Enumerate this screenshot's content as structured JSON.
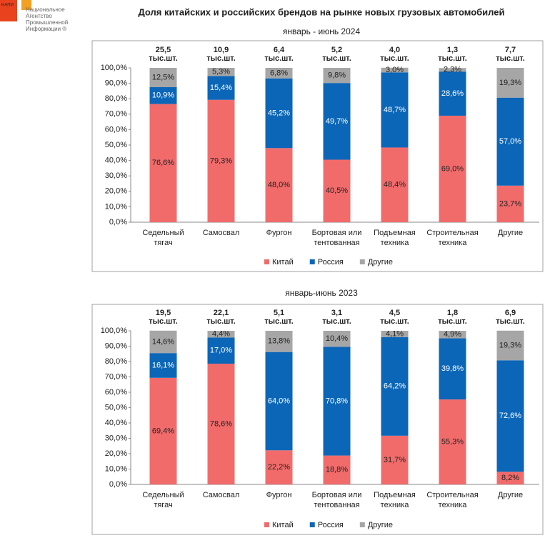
{
  "header": {
    "title": "Доля китайских и российских брендов на рынке новых грузовых автомобилей",
    "logo": {
      "mark": "НАПИ",
      "lines": [
        "Национальное",
        "Агентство",
        "Промышленной",
        "Информации ®"
      ]
    }
  },
  "chart_data": [
    {
      "type": "bar",
      "stacked": true,
      "title": "январь - июнь 2024",
      "categories": [
        "Седельный тягач",
        "Самосвал",
        "Фургон",
        "Бортовая или тентованная",
        "Подъемная техника",
        "Строительная техника",
        "Другие"
      ],
      "series": [
        {
          "name": "Китай",
          "color": "#f26b6b",
          "label_color": "#222222",
          "values": [
            76.6,
            79.3,
            48.0,
            40.5,
            48.4,
            69.0,
            23.7
          ],
          "value_labels": [
            "76,6%",
            "79,3%",
            "48,0%",
            "40,5%",
            "48,4%",
            "69,0%",
            "23,7%"
          ]
        },
        {
          "name": "Россия",
          "color": "#0b66b8",
          "label_color": "#ffffff",
          "values": [
            10.9,
            15.4,
            45.2,
            49.7,
            48.7,
            28.6,
            57.0
          ],
          "value_labels": [
            "10,9%",
            "15,4%",
            "45,2%",
            "49,7%",
            "48,7%",
            "28,6%",
            "57,0%"
          ]
        },
        {
          "name": "Другие",
          "color": "#a6a6a6",
          "label_color": "#222222",
          "values": [
            12.5,
            5.3,
            6.8,
            9.8,
            3.0,
            2.3,
            19.3
          ],
          "value_labels": [
            "12,5%",
            "5,3%",
            "6,8%",
            "9,8%",
            "3,0%",
            "2,3%",
            "19,3%"
          ]
        }
      ],
      "totals": {
        "values": [
          25.5,
          10.9,
          6.4,
          5.2,
          4.0,
          1.3,
          7.7
        ],
        "value_labels": [
          "25,5",
          "10,9",
          "6,4",
          "5,2",
          "4,0",
          "1,3",
          "7,7"
        ],
        "unit": "тыс.шт."
      },
      "ylim": [
        0,
        100
      ],
      "yticks": [
        {
          "value": 0,
          "label": "0,0%"
        },
        {
          "value": 10,
          "label": "10,0%"
        },
        {
          "value": 20,
          "label": "20,0%"
        },
        {
          "value": 30,
          "label": "30,0%"
        },
        {
          "value": 40,
          "label": "40,0%"
        },
        {
          "value": 50,
          "label": "50,0%"
        },
        {
          "value": 60,
          "label": "60,0%"
        },
        {
          "value": 70,
          "label": "70,0%"
        },
        {
          "value": 80,
          "label": "80,0%"
        },
        {
          "value": 90,
          "label": "90,0%"
        },
        {
          "value": 100,
          "label": "100,0%"
        }
      ],
      "grid": false,
      "legend": "bottom"
    },
    {
      "type": "bar",
      "stacked": true,
      "title": "январь-июнь 2023",
      "categories": [
        "Седельный тягач",
        "Самосвал",
        "Фургон",
        "Бортовая или тентованная",
        "Подъемная техника",
        "Строительная техника",
        "Другие"
      ],
      "series": [
        {
          "name": "Китай",
          "color": "#f26b6b",
          "label_color": "#222222",
          "values": [
            69.4,
            78.6,
            22.2,
            18.8,
            31.7,
            55.3,
            8.2
          ],
          "value_labels": [
            "69,4%",
            "78,6%",
            "22,2%",
            "18,8%",
            "31,7%",
            "55,3%",
            "8,2%"
          ]
        },
        {
          "name": "Россия",
          "color": "#0b66b8",
          "label_color": "#ffffff",
          "values": [
            16.1,
            17.0,
            64.0,
            70.8,
            64.2,
            39.8,
            72.6
          ],
          "value_labels": [
            "16,1%",
            "17,0%",
            "64,0%",
            "70,8%",
            "64,2%",
            "39,8%",
            "72,6%"
          ]
        },
        {
          "name": "Другие",
          "color": "#a6a6a6",
          "label_color": "#222222",
          "values": [
            14.6,
            4.4,
            13.8,
            10.4,
            4.1,
            4.9,
            19.3
          ],
          "value_labels": [
            "14,6%",
            "4,4%",
            "13,8%",
            "10,4%",
            "4,1%",
            "4,9%",
            "19,3%"
          ]
        }
      ],
      "totals": {
        "values": [
          19.5,
          22.1,
          5.1,
          3.1,
          4.5,
          1.8,
          6.9
        ],
        "value_labels": [
          "19,5",
          "22,1",
          "5,1",
          "3,1",
          "4,5",
          "1,8",
          "6,9"
        ],
        "unit": "тыс.шт."
      },
      "ylim": [
        0,
        100
      ],
      "yticks": [
        {
          "value": 0,
          "label": "0,0%"
        },
        {
          "value": 10,
          "label": "10,0%"
        },
        {
          "value": 20,
          "label": "20,0%"
        },
        {
          "value": 30,
          "label": "30,0%"
        },
        {
          "value": 40,
          "label": "40,0%"
        },
        {
          "value": 50,
          "label": "50,0%"
        },
        {
          "value": 60,
          "label": "60,0%"
        },
        {
          "value": 70,
          "label": "70,0%"
        },
        {
          "value": 80,
          "label": "80,0%"
        },
        {
          "value": 90,
          "label": "90,0%"
        },
        {
          "value": 100,
          "label": "100,0%"
        }
      ],
      "grid": false,
      "legend": "bottom"
    }
  ]
}
